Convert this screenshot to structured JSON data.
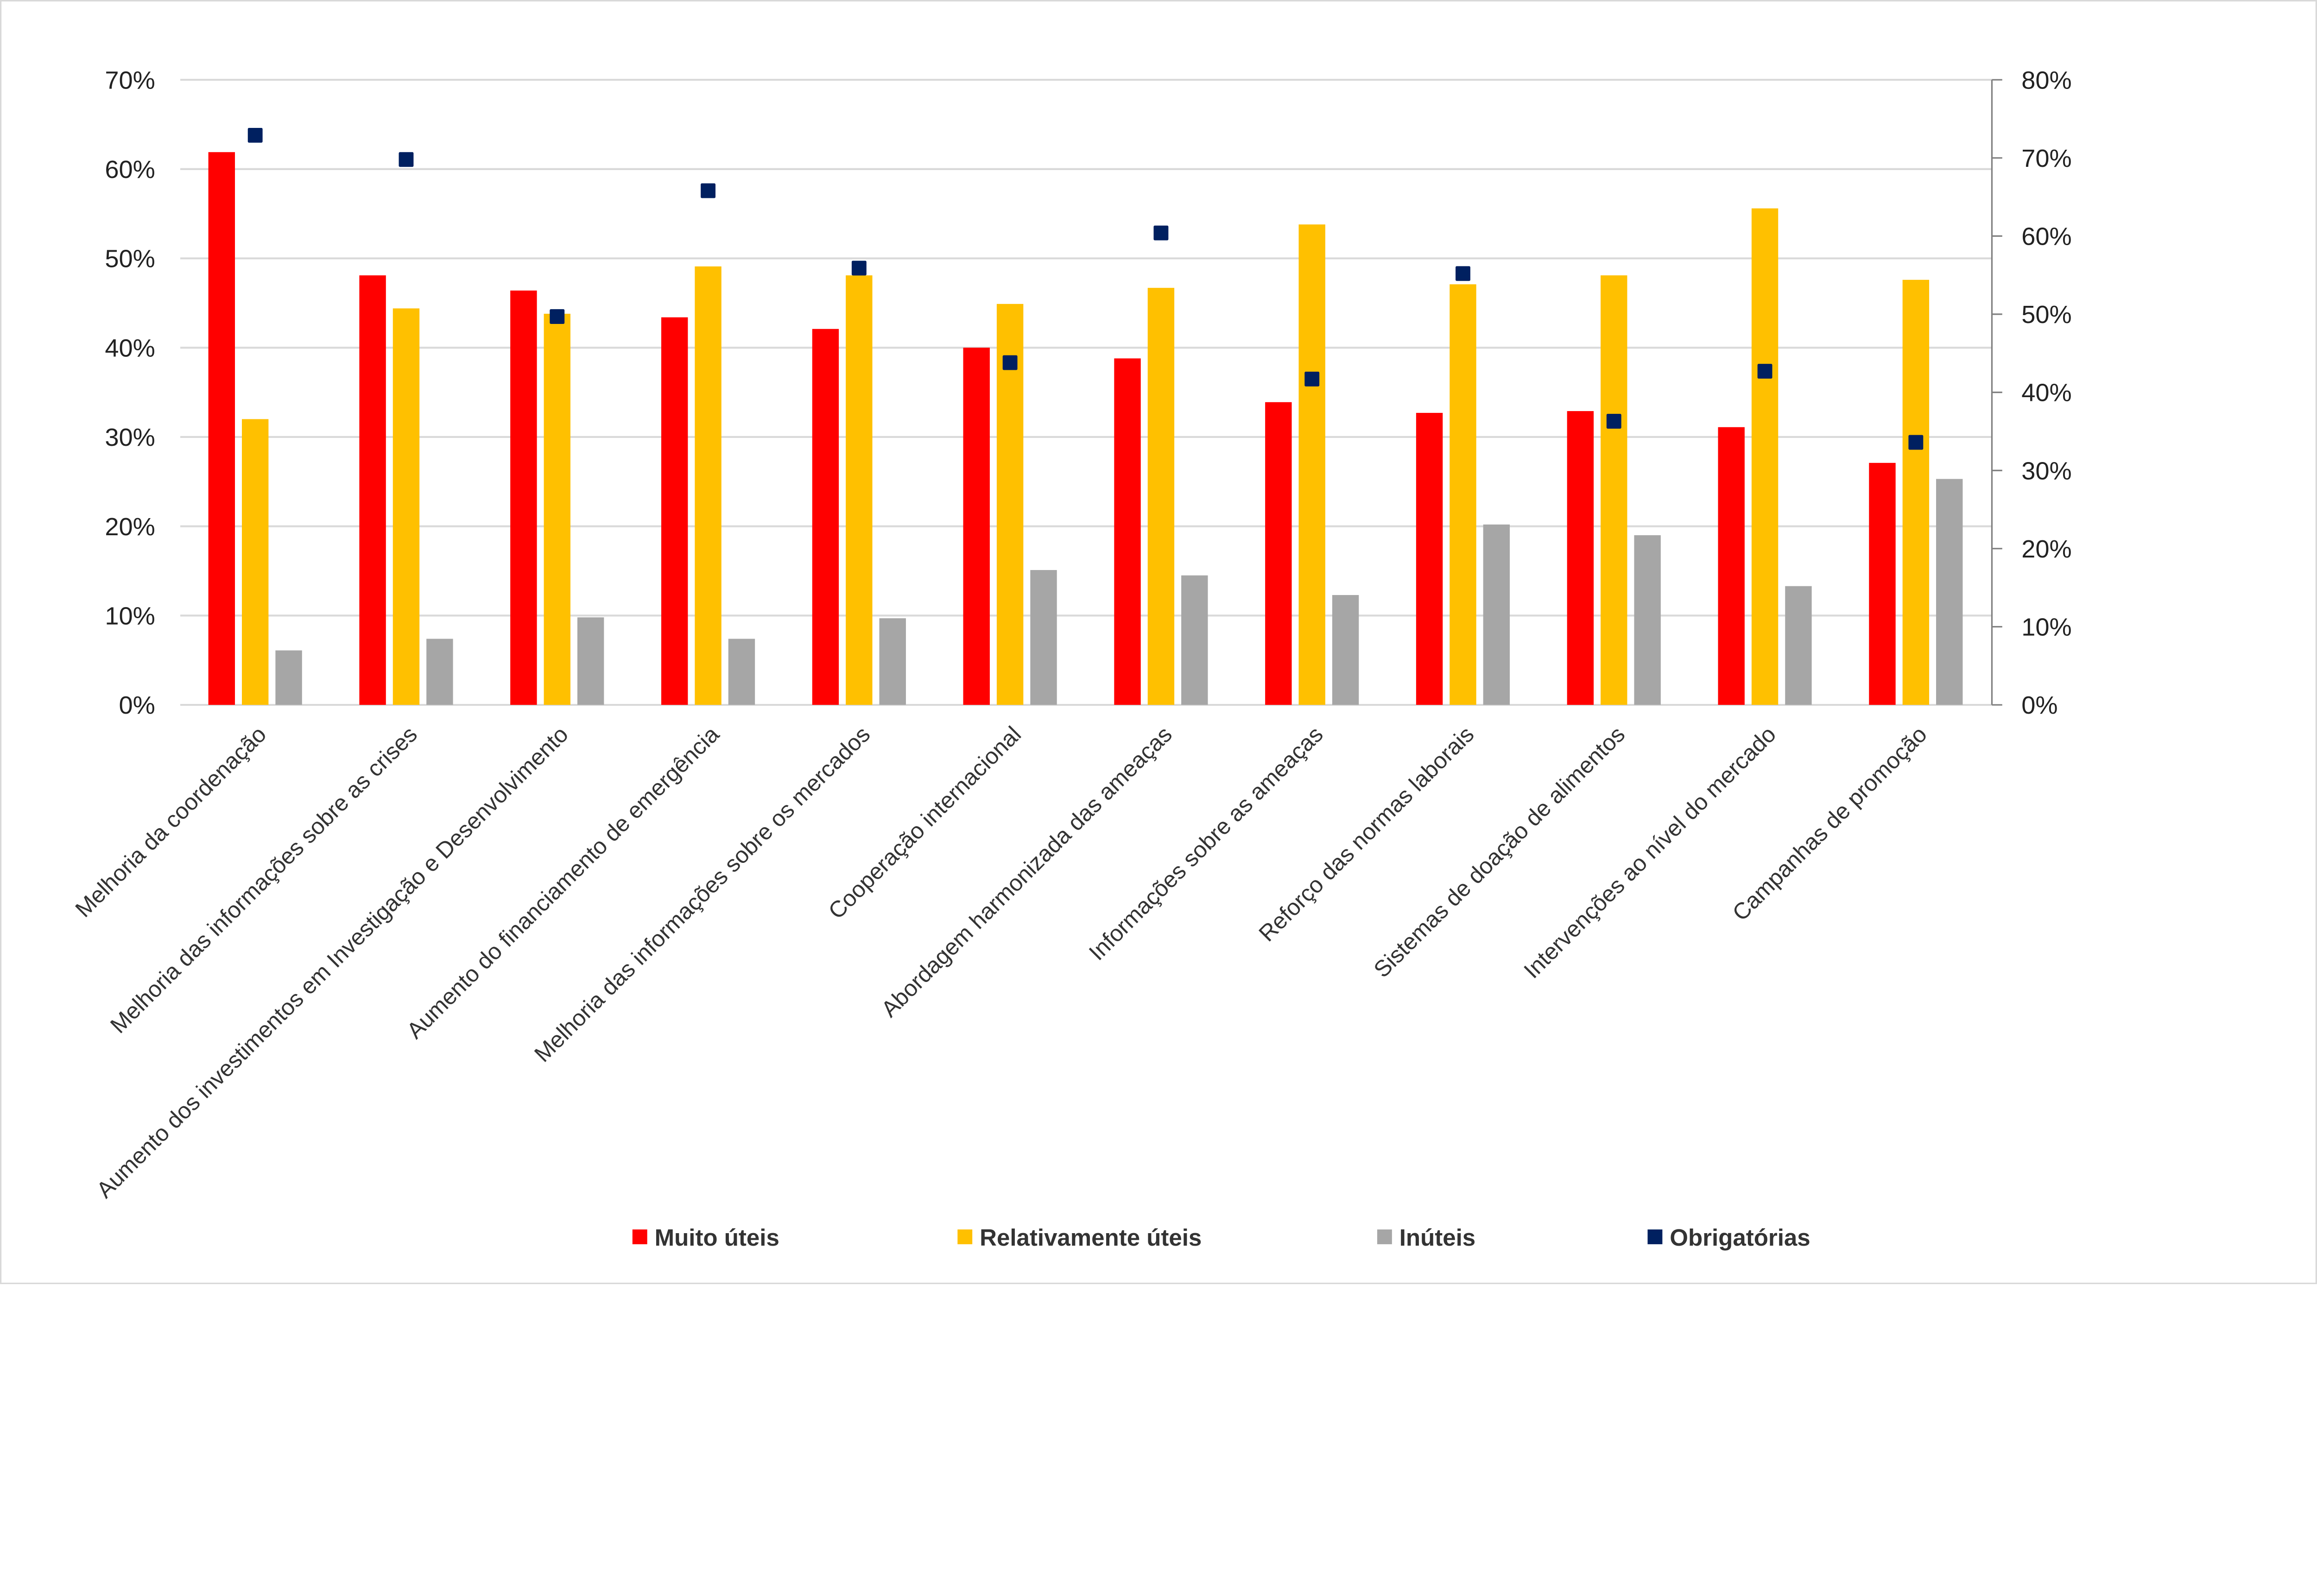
{
  "chart_data": {
    "type": "bar",
    "categories": [
      "Melhoria da coordenação",
      "Melhoria das informações sobre as crises",
      "Aumento dos investimentos em Investigação e Desenvolvimento",
      "Aumento do financiamento de emergência",
      "Melhoria das informações sobre os mercados",
      "Cooperação internacional",
      "Abordagem harmonizada das ameaças",
      "Informações sobre as ameaças",
      "Reforço das normas laborais",
      "Sistemas de doação de alimentos",
      "Intervenções ao nível do mercado",
      "Campanhas de promoção"
    ],
    "series": [
      {
        "name": "Muito úteis",
        "type": "bar",
        "axis": "left",
        "color": "#FF0000",
        "values": [
          61.9,
          48.1,
          46.4,
          43.4,
          42.1,
          40.0,
          38.8,
          33.9,
          32.7,
          32.9,
          31.1,
          27.1
        ]
      },
      {
        "name": "Relativamente úteis",
        "type": "bar",
        "axis": "left",
        "color": "#FFC000",
        "values": [
          32.0,
          44.4,
          43.8,
          49.1,
          48.1,
          44.9,
          46.7,
          53.8,
          47.1,
          48.1,
          55.6,
          47.6
        ]
      },
      {
        "name": "Inúteis",
        "type": "bar",
        "axis": "left",
        "color": "#A6A6A6",
        "values": [
          6.1,
          7.4,
          9.8,
          7.4,
          9.7,
          15.1,
          14.5,
          12.3,
          20.2,
          19.0,
          13.3,
          25.3
        ]
      },
      {
        "name": "Obrigatórias",
        "type": "scatter",
        "marker": "square",
        "axis": "right",
        "color": "#002060",
        "values": [
          72.9,
          69.8,
          49.7,
          65.8,
          55.9,
          43.8,
          60.4,
          41.7,
          55.2,
          36.3,
          42.7,
          33.6
        ]
      }
    ],
    "left_axis": {
      "ylim": [
        0,
        70
      ],
      "ticks": [
        "0%",
        "10%",
        "20%",
        "30%",
        "40%",
        "50%",
        "60%",
        "70%"
      ]
    },
    "right_axis": {
      "ylim": [
        0,
        80
      ],
      "ticks": [
        "0%",
        "10%",
        "20%",
        "30%",
        "40%",
        "50%",
        "60%",
        "70%",
        "80%"
      ]
    },
    "title": "",
    "xlabel": "",
    "ylabel": "",
    "grid": true,
    "legend_position": "bottom"
  }
}
